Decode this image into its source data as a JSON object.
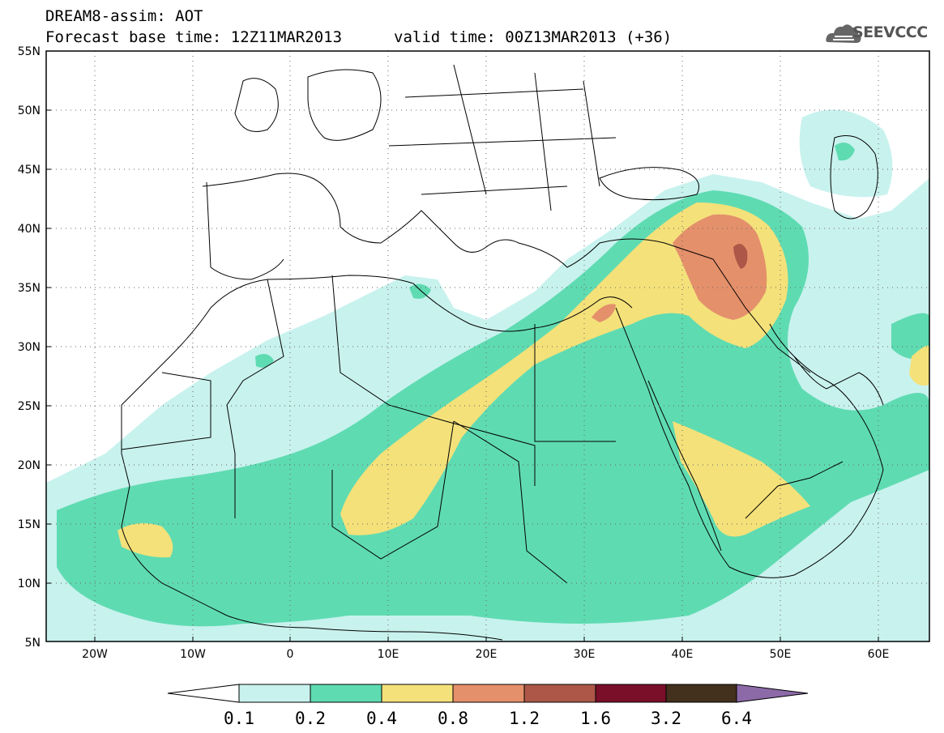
{
  "header": {
    "line1": "DREAM8-assim: AOT",
    "line2": "Forecast base time: 12Z11MAR2013",
    "line3": "valid time: 00Z13MAR2013 (+36)",
    "logo_text": "SEEVCCC"
  },
  "map": {
    "lat_labels": [
      "55N",
      "50N",
      "45N",
      "40N",
      "35N",
      "30N",
      "25N",
      "20N",
      "15N",
      "10N",
      "5N"
    ],
    "lon_labels": [
      "20W",
      "10W",
      "0",
      "10E",
      "20E",
      "30E",
      "40E",
      "50E",
      "60E"
    ],
    "lon_range": [
      -25,
      65
    ],
    "lat_range": [
      5,
      55
    ]
  },
  "legend": {
    "ticks": [
      "0.1",
      "0.2",
      "0.4",
      "0.8",
      "1.2",
      "1.6",
      "3.2",
      "6.4"
    ],
    "colors": [
      "#c8f2ee",
      "#5fdbb2",
      "#f4e17a",
      "#e4906b",
      "#ac5748",
      "#7a0f2a",
      "#43301d",
      "#8c6aa8"
    ]
  }
}
